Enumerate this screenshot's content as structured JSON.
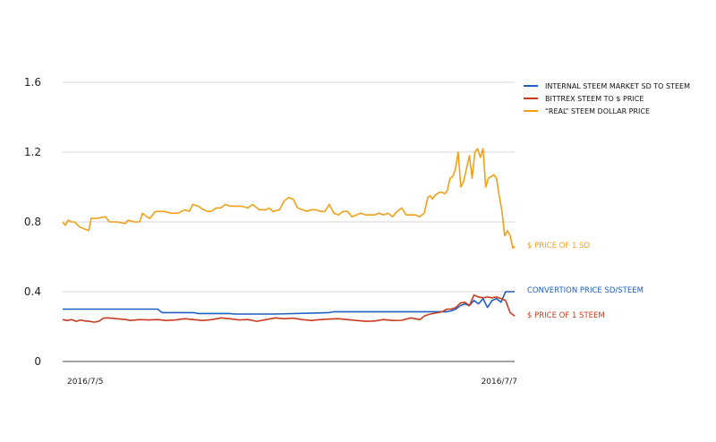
{
  "chart_data": {
    "type": "line",
    "title": "",
    "xlabel": "",
    "ylabel": "",
    "ylim": [
      0,
      1.6
    ],
    "yticks": [
      "0",
      "0.4",
      "0.8",
      "1.2",
      "1.6"
    ],
    "xticks": [
      "2016/7/5",
      "2016/7/7"
    ],
    "xlim": [
      0,
      100
    ],
    "grid": true,
    "legend_position": "top-right",
    "series": [
      {
        "name": "INTERNAL STEEM MARKET SD TO STEEM",
        "color": "#1f5fc0",
        "annotation": "CONVERTION PRICE SD/STEEM",
        "x": [
          0,
          1,
          21,
          22,
          29,
          30,
          37,
          38,
          46,
          47,
          59,
          60,
          79,
          80,
          83,
          84,
          85,
          86,
          87,
          88,
          89,
          90,
          91,
          92,
          93,
          94,
          95,
          96,
          97,
          98,
          99,
          100
        ],
        "y": [
          0.3,
          0.3,
          0.3,
          0.28,
          0.28,
          0.275,
          0.275,
          0.272,
          0.272,
          0.272,
          0.28,
          0.285,
          0.285,
          0.285,
          0.285,
          0.285,
          0.285,
          0.29,
          0.3,
          0.32,
          0.33,
          0.32,
          0.35,
          0.33,
          0.36,
          0.31,
          0.35,
          0.36,
          0.34,
          0.4,
          0.4,
          0.4
        ]
      },
      {
        "name": "BITTREX STEEM TO $ PRICE",
        "color": "#c83a1e",
        "annotation": "$ PRICE OF 1 STEEM",
        "x": [
          0,
          1,
          2,
          3,
          4,
          5,
          6,
          7,
          8,
          9,
          10,
          12,
          14,
          15,
          17,
          19,
          21,
          23,
          25,
          27,
          29,
          31,
          33,
          35,
          37,
          39,
          41,
          43,
          45,
          47,
          49,
          51,
          53,
          55,
          57,
          59,
          61,
          63,
          65,
          67,
          69,
          71,
          73,
          75,
          77,
          79,
          80,
          81,
          82,
          83,
          84,
          85,
          86,
          87,
          88,
          89,
          90,
          91,
          92,
          93,
          94,
          95,
          96,
          97,
          98,
          99,
          100
        ],
        "y": [
          0.24,
          0.235,
          0.24,
          0.23,
          0.238,
          0.232,
          0.23,
          0.225,
          0.23,
          0.248,
          0.25,
          0.245,
          0.24,
          0.235,
          0.24,
          0.238,
          0.24,
          0.235,
          0.238,
          0.245,
          0.24,
          0.235,
          0.24,
          0.25,
          0.245,
          0.238,
          0.24,
          0.23,
          0.24,
          0.25,
          0.245,
          0.248,
          0.24,
          0.235,
          0.24,
          0.243,
          0.245,
          0.24,
          0.235,
          0.23,
          0.232,
          0.24,
          0.235,
          0.236,
          0.25,
          0.24,
          0.26,
          0.27,
          0.275,
          0.28,
          0.285,
          0.3,
          0.3,
          0.31,
          0.335,
          0.34,
          0.32,
          0.38,
          0.37,
          0.365,
          0.37,
          0.365,
          0.37,
          0.36,
          0.35,
          0.28,
          0.26
        ]
      },
      {
        "name": "“REAL” STEEM DOLLAR PRICE",
        "color": "#f0a018",
        "annotation": "$ PRICE OF 1 SD",
        "x": [
          0,
          0.6,
          1.2,
          1.9,
          2.6,
          3.8,
          4.8,
          5.8,
          6.3,
          7.5,
          9.5,
          10.3,
          12.0,
          13.8,
          14.5,
          15.8,
          17.0,
          17.7,
          18.6,
          19.3,
          20.5,
          22.0,
          22.5,
          24.0,
          25.5,
          27.0,
          28.0,
          28.8,
          30.0,
          31.2,
          32.0,
          32.8,
          34.0,
          35.0,
          36.0,
          37.0,
          38.5,
          39.5,
          41.0,
          42.0,
          43.5,
          45.0,
          45.7,
          46.5,
          48.0,
          49.0,
          50.0,
          51.0,
          52.0,
          53.0,
          54.0,
          55.0,
          56.0,
          57.0,
          58.0,
          59.0,
          60.0,
          61.0,
          62.0,
          63.0,
          64.0,
          65.0,
          66.0,
          67.0,
          68.0,
          69.0,
          70.0,
          71.0,
          72.0,
          73.0,
          74.0,
          75.0,
          76.0,
          77.0,
          78.0,
          79.0,
          80.0,
          80.8,
          81.3,
          81.8,
          82.3,
          82.8,
          83.4,
          84.0,
          84.5,
          85.1,
          85.7,
          86.3,
          86.9,
          87.5,
          88.1,
          88.7,
          89.3,
          90.0,
          90.6,
          91.2,
          91.8,
          92.4,
          93.0,
          93.6,
          94.2,
          94.8,
          95.4,
          96.0,
          96.6,
          97.2,
          97.8,
          98.4,
          99.0,
          99.6,
          100
        ],
        "y": [
          0.8,
          0.78,
          0.81,
          0.8,
          0.8,
          0.77,
          0.76,
          0.75,
          0.82,
          0.82,
          0.83,
          0.8,
          0.8,
          0.79,
          0.81,
          0.8,
          0.8,
          0.85,
          0.83,
          0.82,
          0.86,
          0.86,
          0.86,
          0.85,
          0.85,
          0.87,
          0.86,
          0.9,
          0.89,
          0.87,
          0.86,
          0.86,
          0.88,
          0.88,
          0.9,
          0.89,
          0.89,
          0.89,
          0.88,
          0.9,
          0.87,
          0.87,
          0.88,
          0.86,
          0.87,
          0.92,
          0.94,
          0.93,
          0.88,
          0.87,
          0.86,
          0.87,
          0.87,
          0.86,
          0.86,
          0.9,
          0.85,
          0.84,
          0.86,
          0.86,
          0.83,
          0.84,
          0.85,
          0.84,
          0.84,
          0.84,
          0.85,
          0.84,
          0.85,
          0.83,
          0.86,
          0.88,
          0.84,
          0.84,
          0.84,
          0.83,
          0.85,
          0.94,
          0.95,
          0.93,
          0.95,
          0.96,
          0.97,
          0.97,
          0.96,
          0.98,
          1.05,
          1.06,
          1.1,
          1.2,
          1.0,
          1.03,
          1.1,
          1.18,
          1.05,
          1.2,
          1.22,
          1.17,
          1.22,
          1.0,
          1.05,
          1.06,
          1.07,
          1.05,
          0.95,
          0.86,
          0.72,
          0.75,
          0.72,
          0.65,
          0.66
        ]
      }
    ]
  }
}
